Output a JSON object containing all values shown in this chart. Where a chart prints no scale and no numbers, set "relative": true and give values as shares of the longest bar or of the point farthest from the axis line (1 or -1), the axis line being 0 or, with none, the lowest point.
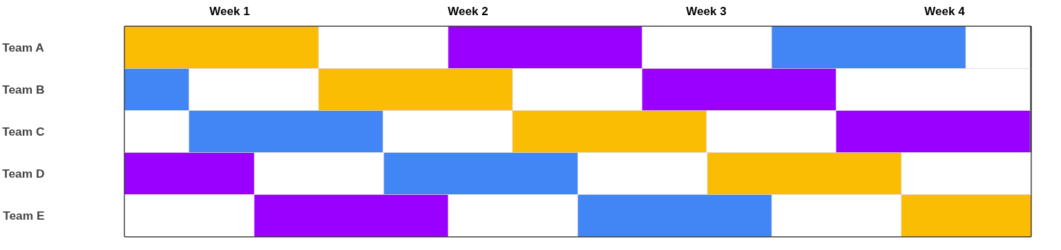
{
  "chart_data": {
    "type": "bar",
    "orientation": "horizontal",
    "relative": true,
    "stacked": true,
    "categories": [
      "Team A",
      "Team B",
      "Team C",
      "Team D",
      "Team E"
    ],
    "series": [
      {
        "colors": [
          "#fbbc04",
          "#4285f4",
          "#ffffff",
          "#9900ff",
          "#ffffff"
        ],
        "values": [
          0.214,
          0.071,
          0.071,
          0.143,
          0.143
        ]
      },
      {
        "colors": [
          "#ffffff",
          "#ffffff",
          "#4285f4",
          "#ffffff",
          "#9900ff"
        ],
        "values": [
          0.143,
          0.143,
          0.214,
          0.143,
          0.214
        ]
      },
      {
        "colors": [
          "#9900ff",
          "#fbbc04",
          "#ffffff",
          "#4285f4",
          "#ffffff"
        ],
        "values": [
          0.214,
          0.214,
          0.143,
          0.214,
          0.143
        ]
      },
      {
        "colors": [
          "#ffffff",
          "#ffffff",
          "#fbbc04",
          "#ffffff",
          "#4285f4"
        ],
        "values": [
          0.143,
          0.143,
          0.214,
          0.143,
          0.214
        ]
      },
      {
        "colors": [
          "#4285f4",
          "#9900ff",
          "#ffffff",
          "#fbbc04",
          "#ffffff"
        ],
        "values": [
          0.214,
          0.214,
          0.143,
          0.214,
          0.143
        ]
      },
      {
        "colors": [
          "#ffffff",
          "#ffffff",
          "#9900ff",
          "#ffffff",
          "#fbbc04"
        ],
        "values": [
          0.071,
          0.214,
          0.214,
          0.143,
          0.143
        ]
      }
    ],
    "annotations": [
      "Week 1",
      "Week 2",
      "Week 3",
      "Week 4"
    ],
    "grid": "y"
  }
}
